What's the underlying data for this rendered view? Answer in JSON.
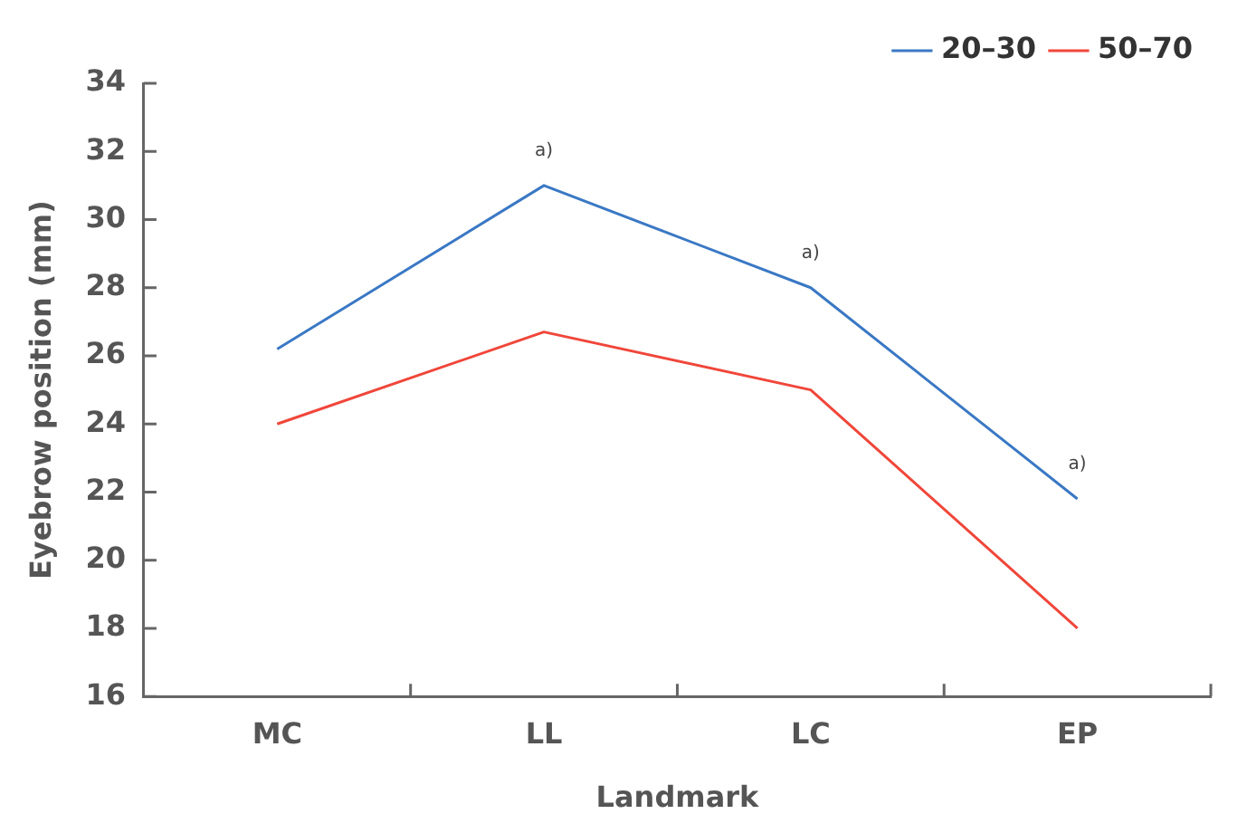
{
  "chart_data": {
    "type": "line",
    "xlabel": "Landmark",
    "ylabel": "Eyebrow position (mm)",
    "categories": [
      "MC",
      "LL",
      "LC",
      "EP"
    ],
    "series": [
      {
        "name": "20–30",
        "color": "#3a78c4",
        "values": [
          26.2,
          31,
          28,
          21.8
        ]
      },
      {
        "name": "50–70",
        "color": "#f0463a",
        "values": [
          24,
          26.7,
          25,
          18
        ]
      }
    ],
    "ylim": [
      16,
      34
    ],
    "yticks": [
      16,
      18,
      20,
      22,
      24,
      26,
      28,
      30,
      32,
      34
    ],
    "grid": false,
    "legend": "top right",
    "marker": "none",
    "annotations": [
      {
        "text": "a)",
        "x": "LL",
        "y": 31
      },
      {
        "text": "a)",
        "x": "LC",
        "y": 28
      },
      {
        "text": "a)",
        "x": "EP",
        "y": 21.8
      }
    ]
  }
}
